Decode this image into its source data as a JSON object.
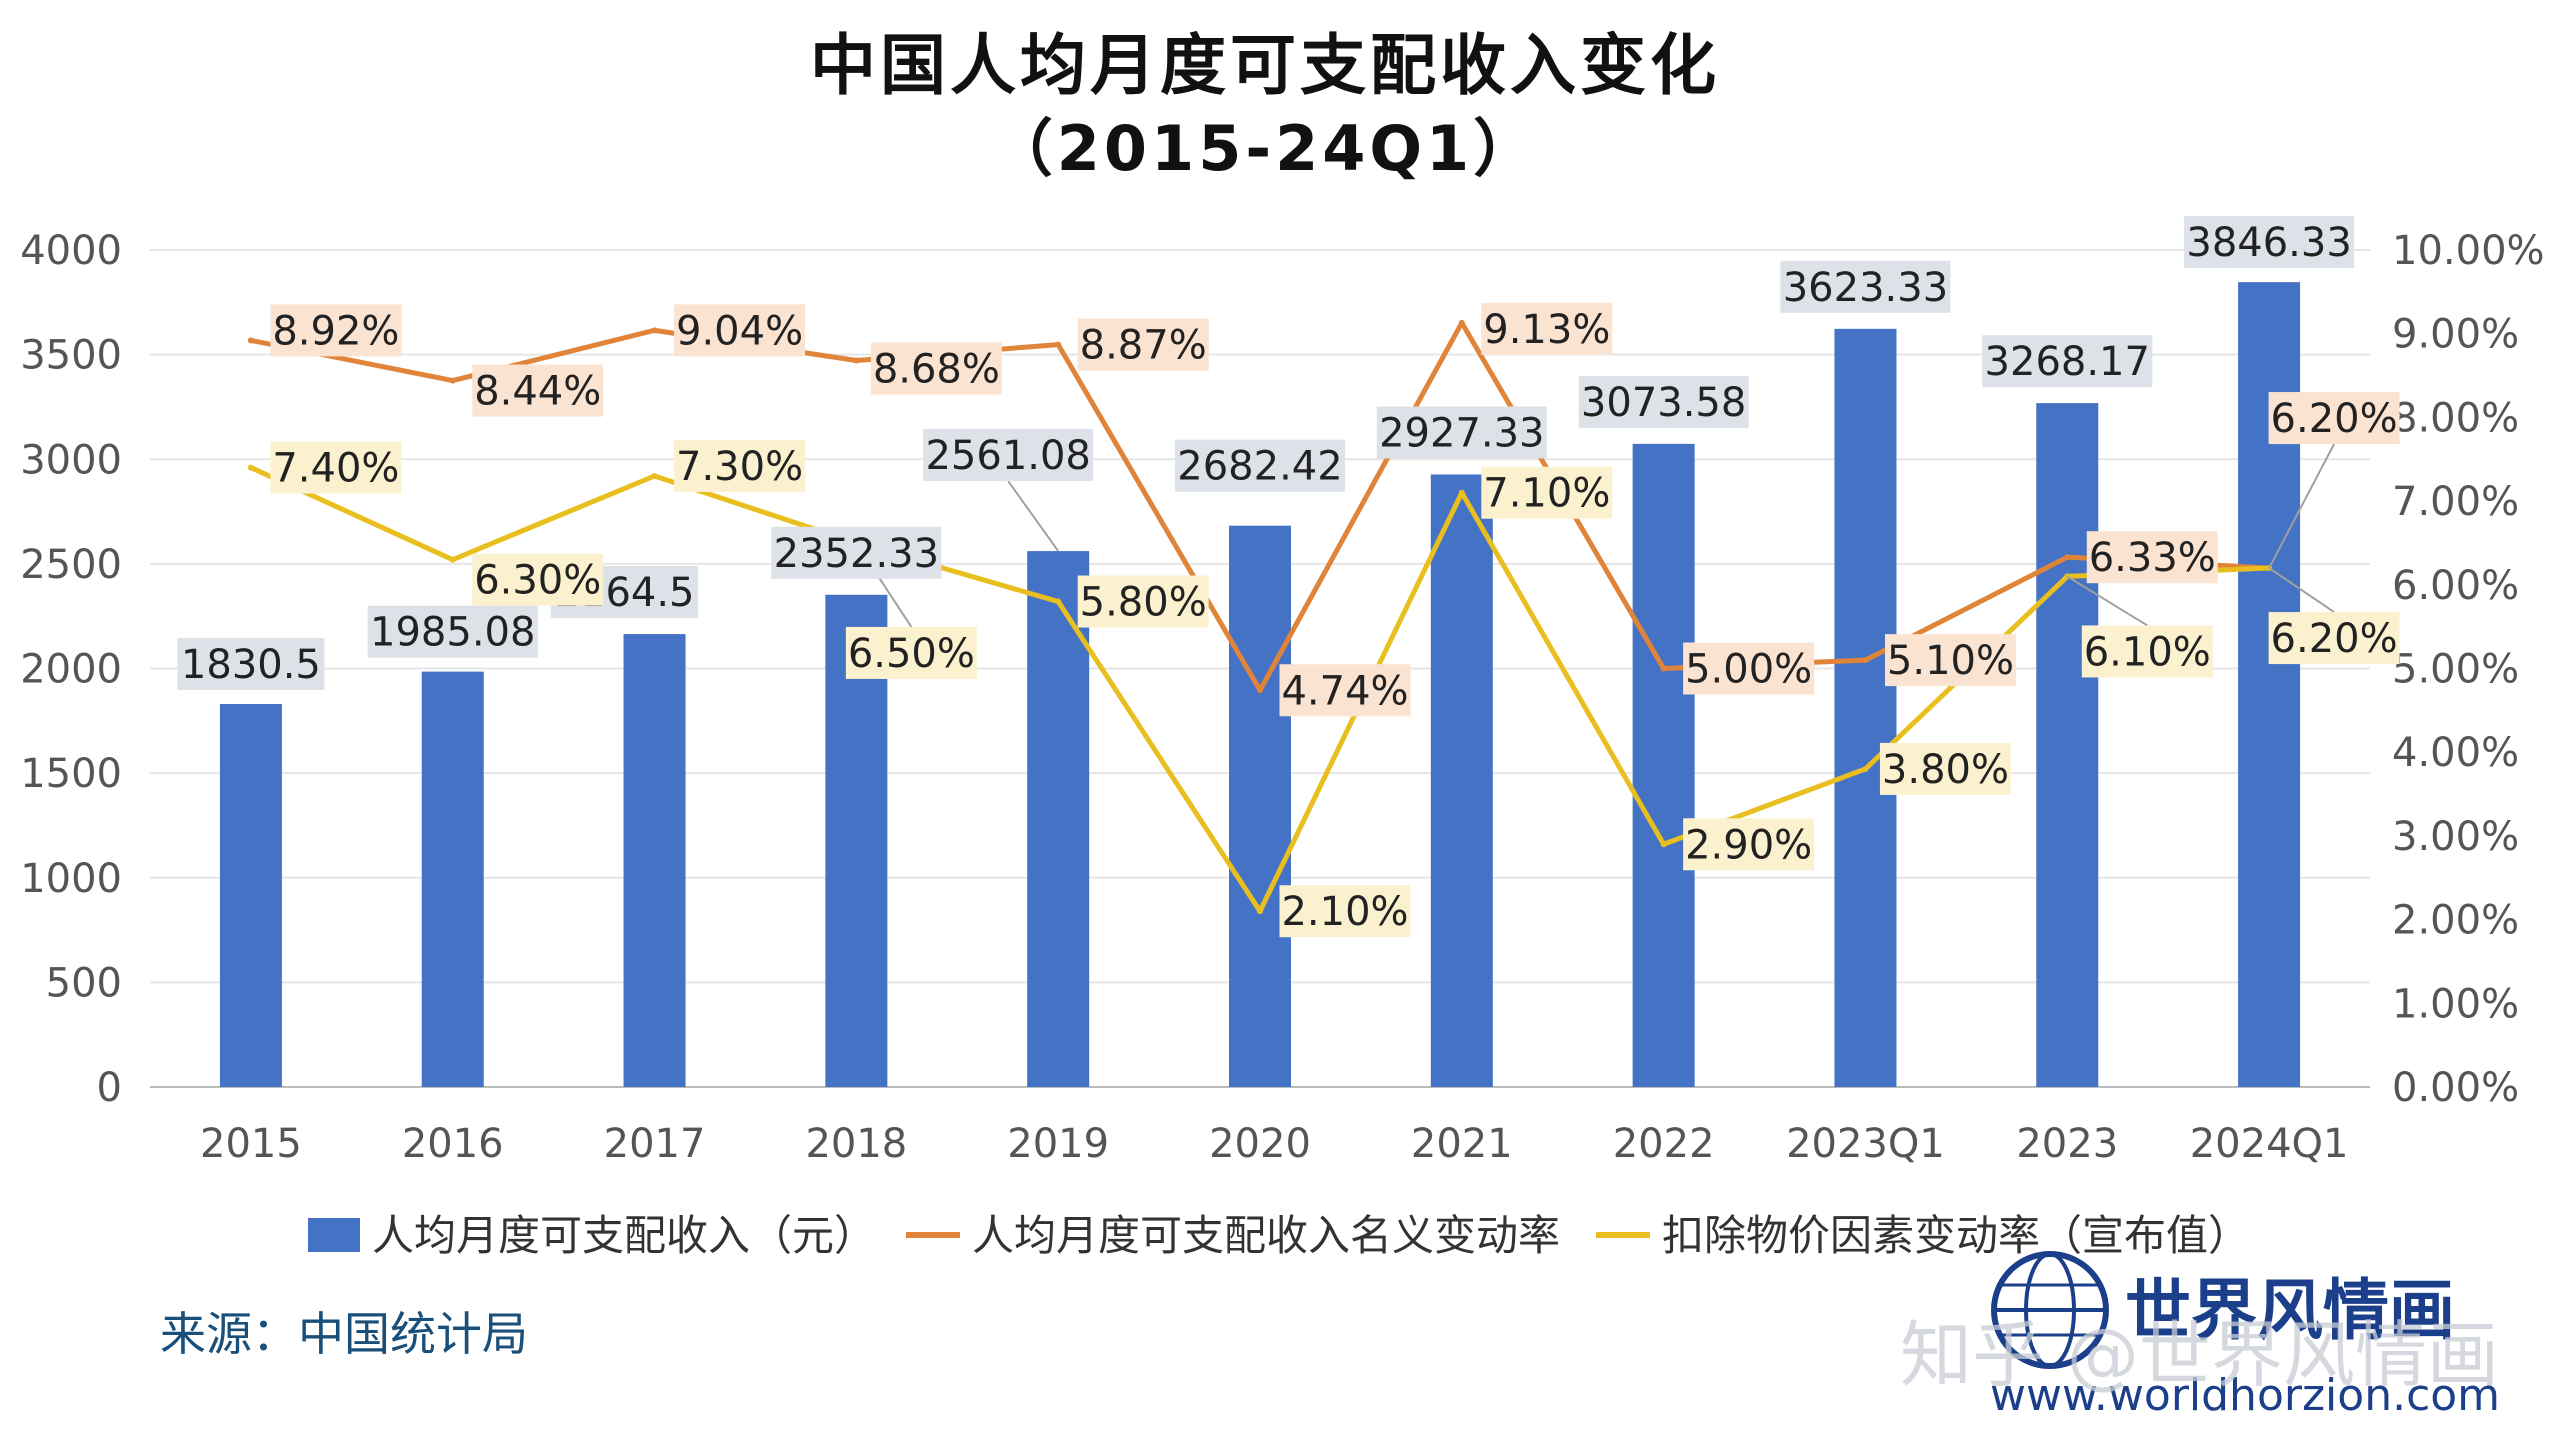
{
  "chart_data": {
    "type": "bar",
    "title": "中国人均月度可支配收入变化",
    "subtitle": "（2015-24Q1）",
    "categories": [
      "2015",
      "2016",
      "2017",
      "2018",
      "2019",
      "2020",
      "2021",
      "2022",
      "2023Q1",
      "2023",
      "2024Q1"
    ],
    "y_left": {
      "min": 0,
      "max": 4000,
      "ticks": [
        "0",
        "500",
        "1000",
        "1500",
        "2000",
        "2500",
        "3000",
        "3500",
        "4000"
      ]
    },
    "y_right": {
      "min": 0,
      "max": 10,
      "ticks": [
        "0.00%",
        "1.00%",
        "2.00%",
        "3.00%",
        "4.00%",
        "5.00%",
        "6.00%",
        "7.00%",
        "8.00%",
        "9.00%",
        "10.00%"
      ]
    },
    "grid": true,
    "legend_position": "bottom",
    "series": [
      {
        "name": "人均月度可支配收入（元）",
        "type": "bar",
        "axis": "left",
        "color": "#4472c4",
        "values": [
          1830.5,
          1985.08,
          2164.5,
          2352.33,
          2561.08,
          2682.42,
          2927.33,
          3073.58,
          3623.33,
          3268.17,
          3846.33
        ],
        "labels": [
          "1830.5",
          "1985.08",
          "2164.5",
          "2352.33",
          "2561.08",
          "2682.42",
          "2927.33",
          "3073.58",
          "3623.33",
          "3268.17",
          "3846.33"
        ],
        "label_bg": "#dde1e8"
      },
      {
        "name": "人均月度可支配收入名义变动率",
        "type": "line",
        "axis": "right",
        "color": "#e0843a",
        "values": [
          8.92,
          8.44,
          9.04,
          8.68,
          8.87,
          4.74,
          9.13,
          5.0,
          5.1,
          6.33,
          6.2
        ],
        "labels": [
          "8.92%",
          "8.44%",
          "9.04%",
          "8.68%",
          "8.87%",
          "4.74%",
          "9.13%",
          "5.00%",
          "5.10%",
          "6.33%",
          "6.20%"
        ],
        "label_bg": "#fbe3d2"
      },
      {
        "name": "扣除物价因素变动率（宣布值）",
        "type": "line",
        "axis": "right",
        "color": "#e8bf1e",
        "values": [
          7.4,
          6.3,
          7.3,
          6.5,
          5.8,
          2.1,
          7.1,
          2.9,
          3.8,
          6.1,
          6.2
        ],
        "labels": [
          "7.40%",
          "6.30%",
          "7.30%",
          "6.50%",
          "5.80%",
          "2.10%",
          "7.10%",
          "2.90%",
          "3.80%",
          "6.10%",
          "6.20%"
        ],
        "label_bg": "#fcf1cf"
      }
    ]
  },
  "source": "来源：中国统计局",
  "watermark": {
    "brand": "世界风情画",
    "url": "www.worldhorzion.com",
    "overlay": "知乎 @世界风情画"
  }
}
